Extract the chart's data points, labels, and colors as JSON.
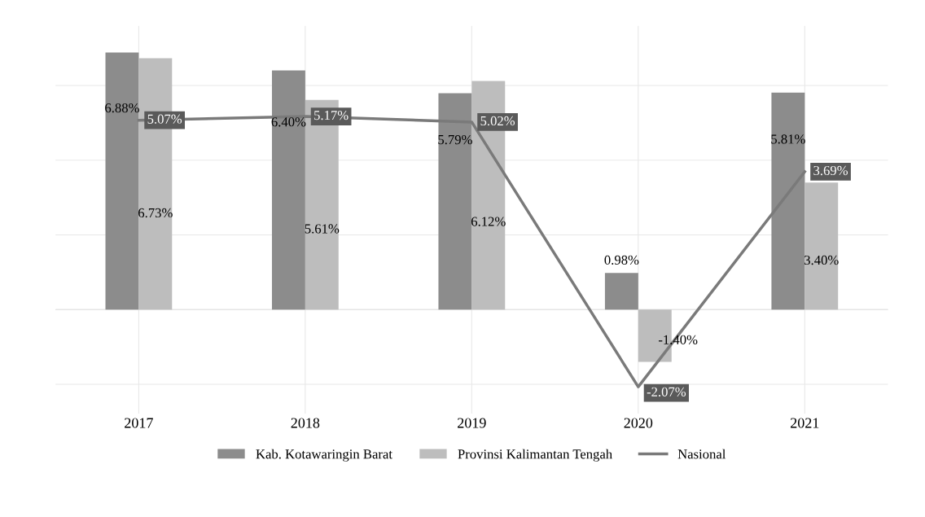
{
  "chart_data": {
    "type": "bar",
    "categories": [
      "2017",
      "2018",
      "2019",
      "2020",
      "2021"
    ],
    "series": [
      {
        "name": "Kab. Kotawaringin Barat",
        "color": "#8c8c8c",
        "values": [
          6.88,
          6.4,
          5.79,
          0.98,
          5.81
        ],
        "value_labels": [
          "6.88%",
          "6.40%",
          "5.79%",
          "0.98%",
          "5.81%"
        ]
      },
      {
        "name": "Provinsi Kalimantan Tengah",
        "color": "#bdbdbd",
        "values": [
          6.73,
          5.61,
          6.12,
          -1.4,
          3.4
        ],
        "value_labels": [
          "6.73%",
          "5.61%",
          "6.12%",
          "-1.40%",
          "3.40%"
        ]
      },
      {
        "name": "Nasional",
        "type": "line",
        "color": "#7a7a7a",
        "values": [
          5.07,
          5.17,
          5.02,
          -2.07,
          3.69
        ],
        "value_labels": [
          "5.07%",
          "5.17%",
          "5.02%",
          "-2.07%",
          "3.69%"
        ]
      }
    ],
    "grid": true,
    "legend": "bottom",
    "tick_labels": "x",
    "marker": "none",
    "line_style": "solid"
  }
}
